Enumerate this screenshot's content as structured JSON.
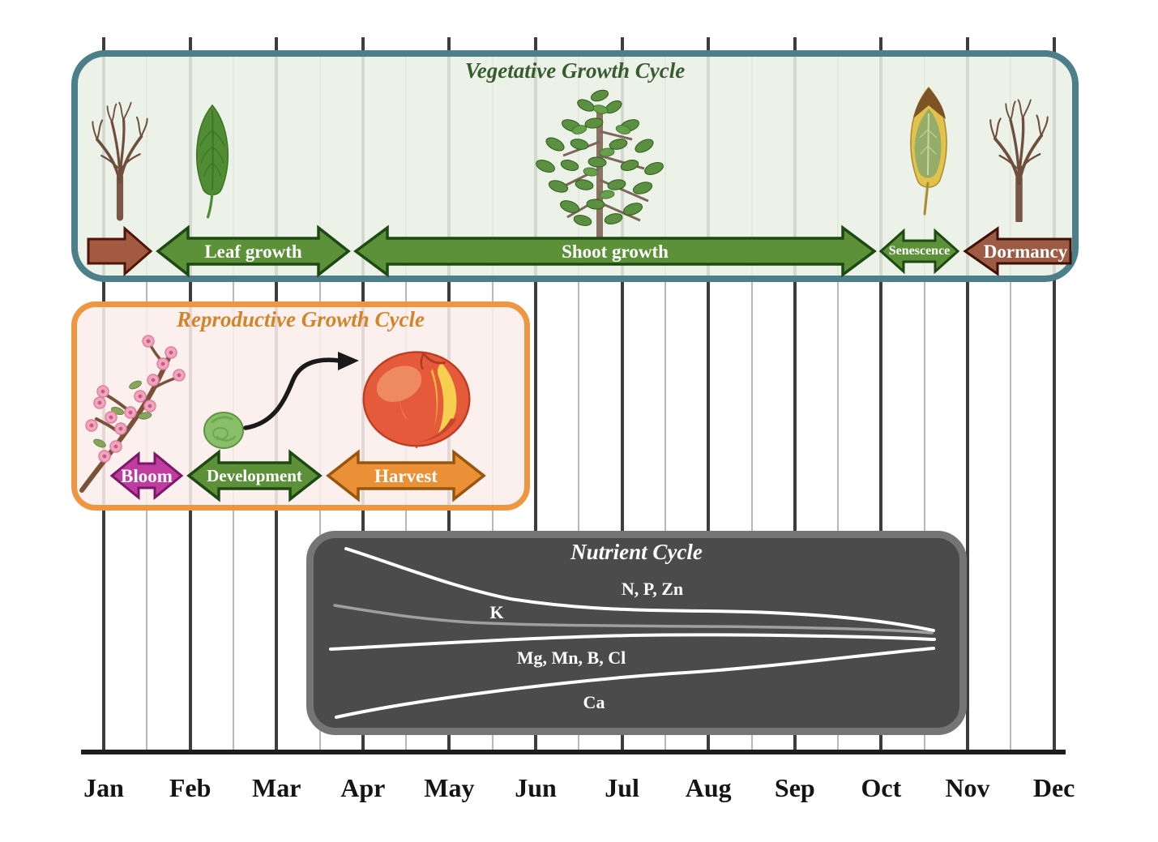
{
  "timeline": {
    "months": [
      "Jan",
      "Feb",
      "Mar",
      "Apr",
      "May",
      "Jun",
      "Jul",
      "Aug",
      "Sep",
      "Oct",
      "Nov",
      "Dec"
    ]
  },
  "vegetative": {
    "title": "Vegetative Growth Cycle",
    "stages": [
      {
        "label": "",
        "note": "unlabeled brown lead-in arrow (January)"
      },
      {
        "label": "Leaf growth"
      },
      {
        "label": "Shoot growth"
      },
      {
        "label": "Senescence"
      },
      {
        "label": "Dormancy"
      }
    ],
    "illustrations": [
      "dormant-bare-tree",
      "green-leaf",
      "leafy-young-tree",
      "senescent-leaf",
      "dormant-bare-tree"
    ]
  },
  "reproductive": {
    "title": "Reproductive Growth Cycle",
    "stages": [
      {
        "label": "Bloom"
      },
      {
        "label": "Development"
      },
      {
        "label": "Harvest"
      }
    ],
    "illustrations": [
      "blossom-branch",
      "young-green-fruit",
      "ripe-peach",
      "curved-arrow-fruit-to-peach"
    ]
  },
  "nutrient": {
    "title": "Nutrient Cycle",
    "curves": [
      {
        "label": "N, P, Zn",
        "color": "#ffffff",
        "trend": "high in spring, declines and flattens through season"
      },
      {
        "label": "K",
        "color": "#9f9f9f",
        "trend": "moderate, gently declining then flat"
      },
      {
        "label": "Mg, Mn, B, Cl",
        "color": "#ffffff",
        "trend": "steady with slight rise"
      },
      {
        "label": "Ca",
        "color": "#ffffff",
        "trend": "low in spring, rises steadily; all curves converge in October"
      }
    ]
  },
  "colors": {
    "vegetative_border": "#4d7f8a",
    "vegetative_bg": "#e9f0e4",
    "vegetative_title": "#375c30",
    "reproductive_border": "#ee9743",
    "reproductive_bg": "#fbeeec",
    "reproductive_title": "#d28429",
    "nutrient_bg": "#4b4b4b",
    "nutrient_border": "#757575",
    "arrow_green": "#5c9039",
    "arrow_brown": "#a25b41",
    "arrow_magenta": "#c03da0",
    "arrow_orange": "#ea9138",
    "gridline_major": "#3d3d3d",
    "gridline_minor": "#b7b7b7"
  }
}
